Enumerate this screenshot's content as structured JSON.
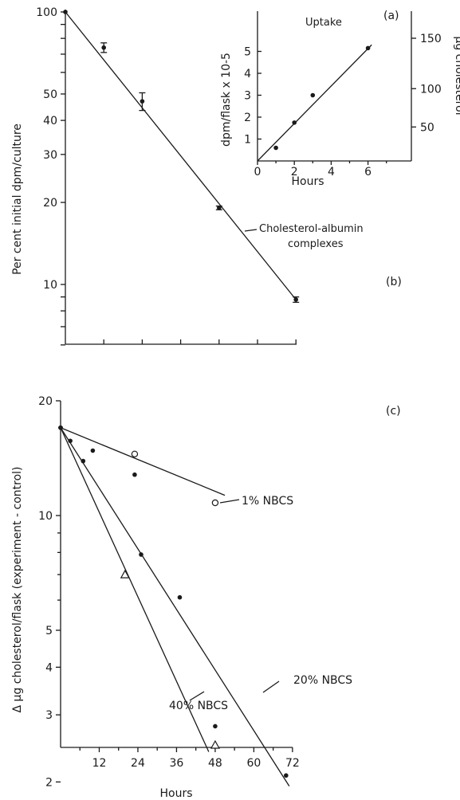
{
  "chart_data": [
    {
      "panel": "(b)",
      "type": "line",
      "ylabel": "Per cent initial dpm/culture",
      "yscale": "log",
      "ylim": [
        6,
        100
      ],
      "y_ticks": [
        100,
        50,
        40,
        30,
        20,
        10
      ],
      "x_unit_ticks": 8,
      "series": [
        {
          "name": "Cholesterol-albumin complexes",
          "points": [
            {
              "x": 0,
              "y": 100,
              "err": 0
            },
            {
              "x": 1,
              "y": 74,
              "err": 3
            },
            {
              "x": 2,
              "y": 47,
              "err": 3.5
            },
            {
              "x": 4,
              "y": 19.1,
              "err": 0.3
            },
            {
              "x": 6,
              "y": 8.8,
              "err": 0.2
            }
          ],
          "fit": [
            [
              0,
              100
            ],
            [
              6,
              8.8
            ]
          ]
        }
      ]
    },
    {
      "panel": "(a)",
      "type": "scatter",
      "title": "Uptake",
      "xlabel": "Hours",
      "ylabel": "dpm/flask x 10-5",
      "y2label": "μg cholesterol",
      "xlim": [
        0,
        8
      ],
      "ylim": [
        0,
        6.5
      ],
      "x_ticks": [
        0,
        2,
        4,
        6
      ],
      "y_ticks": [
        1,
        2,
        3,
        4,
        5
      ],
      "y2_ticks": [
        50,
        100,
        150
      ],
      "y2_tick_positions": [
        1.55,
        3.3,
        5.6
      ],
      "points": [
        {
          "x": 1,
          "y": 0.6
        },
        {
          "x": 2,
          "y": 1.75
        },
        {
          "x": 3,
          "y": 3.0
        },
        {
          "x": 6,
          "y": 5.15
        }
      ],
      "fit": [
        [
          0,
          0
        ],
        [
          6.2,
          5.3
        ]
      ]
    },
    {
      "panel": "(c)",
      "type": "scatter",
      "xlabel": "Hours",
      "ylabel": "Δ μg cholesterol/flask (experiment - control)",
      "yscale": "log",
      "xlim": [
        0,
        72
      ],
      "ylim": [
        1,
        20
      ],
      "x_ticks": [
        12,
        24,
        36,
        48,
        60,
        72
      ],
      "y_ticks": [
        20,
        10,
        5,
        4,
        3,
        2
      ],
      "series": [
        {
          "name": "1% NBCS",
          "marker": "open-circle",
          "points": [
            {
              "x": 0,
              "y": 17
            },
            {
              "x": 23,
              "y": 14.5
            },
            {
              "x": 48,
              "y": 10.8
            }
          ],
          "fit": [
            [
              0,
              17
            ],
            [
              51,
              11.3
            ]
          ]
        },
        {
          "name": "20% NBCS",
          "marker": "filled-circle",
          "points": [
            {
              "x": 0,
              "y": 17
            },
            {
              "x": 3,
              "y": 15.7
            },
            {
              "x": 7,
              "y": 13.9
            },
            {
              "x": 10,
              "y": 14.8
            },
            {
              "x": 23,
              "y": 12.8
            },
            {
              "x": 25,
              "y": 7.9
            },
            {
              "x": 37,
              "y": 6.1
            },
            {
              "x": 48,
              "y": 2.8
            },
            {
              "x": 70,
              "y": 2.08
            }
          ],
          "fit": [
            [
              0,
              17
            ],
            [
              71,
              1.95
            ]
          ]
        },
        {
          "name": "40% NBCS",
          "marker": "open-triangle",
          "points": [
            {
              "x": 0,
              "y": 17
            },
            {
              "x": 20,
              "y": 7.0
            },
            {
              "x": 48,
              "y": 2.5
            }
          ],
          "fit": [
            [
              0,
              17
            ],
            [
              46,
              2.4
            ]
          ]
        }
      ]
    }
  ]
}
